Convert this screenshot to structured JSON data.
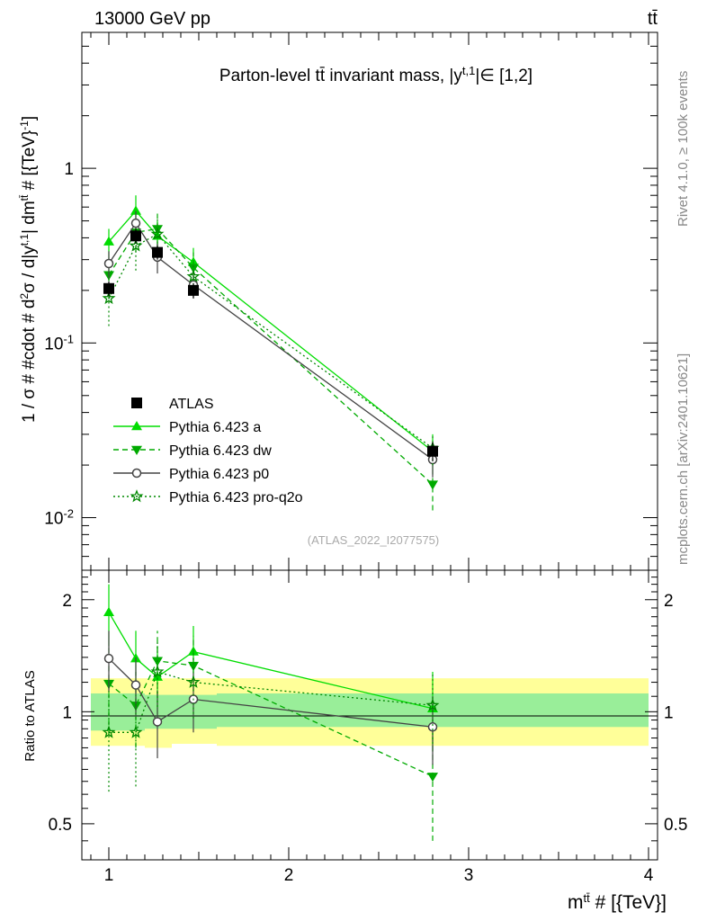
{
  "header": {
    "left": "13000 GeV pp",
    "right": "tt̄"
  },
  "side_labels": {
    "rivet": "Rivet 4.1.0, ≥ 100k events",
    "mcplots": "mcplots.cern.ch [arXiv:2401.10621]"
  },
  "chart_data": {
    "type": "line",
    "title": "Parton-level tt̄ invariant mass, |y^{t,1}| ∈ [1,2]",
    "title_parts": {
      "main": "Parton-level tt̄ invariant mass, |y",
      "sup": "t,1",
      "tail": "|∈ [1,2]"
    },
    "ylabel": "1 / σ # #cdot # d²σ / d|y^{t,1}| dm^{tt̄} # [{TeV}⁻¹]",
    "ylabel_parts": {
      "a": "1 / σ # #cdot # d",
      "b": "2",
      "c": "σ / d|y",
      "d": "t,1",
      "e": "| dm",
      "f": "tt̄",
      "g": " # [{TeV}",
      "h": "-1",
      "i": "]"
    },
    "xlabel": "m^{tt̄} # [{TeV}]",
    "xlabel_parts": {
      "a": "m",
      "b": "tt̄",
      "c": " # [{TeV}]"
    },
    "ratio_ylabel": "Ratio to ATLAS",
    "watermark": "(ATLAS_2022_I2077575)",
    "xlim": [
      0.85,
      4.05
    ],
    "ylim": [
      0.005,
      6
    ],
    "yscale": "log",
    "ratio_ylim": [
      0.4,
      2.4
    ],
    "x_ticks": [
      "1",
      "2",
      "3",
      "4"
    ],
    "y_ticks": [
      "10^{-2}",
      "10^{-1}",
      "1"
    ],
    "ratio_ticks": [
      "0.5",
      "1",
      "2"
    ],
    "x": [
      1.0,
      1.15,
      1.27,
      1.47,
      2.8
    ],
    "bin_edges": [
      0.9,
      1.08,
      1.2,
      1.35,
      1.6,
      4.0
    ],
    "band_inner": [
      [
        0.89,
        1.12
      ],
      [
        0.89,
        1.12
      ],
      [
        0.9,
        1.11
      ],
      [
        0.9,
        1.11
      ],
      [
        0.91,
        1.12
      ]
    ],
    "band_outer": [
      [
        0.81,
        1.23
      ],
      [
        0.81,
        1.23
      ],
      [
        0.8,
        1.23
      ],
      [
        0.82,
        1.23
      ],
      [
        0.81,
        1.23
      ]
    ],
    "series": [
      {
        "name": "ATLAS",
        "role": "data",
        "color": "#000000",
        "marker": "square",
        "dash": "",
        "values": [
          0.205,
          0.41,
          0.33,
          0.2,
          0.024
        ],
        "err": [
          [
            0.185,
            0.225
          ],
          [
            0.37,
            0.45
          ],
          [
            0.3,
            0.36
          ],
          [
            0.18,
            0.22
          ],
          [
            0.021,
            0.027
          ]
        ],
        "ratio": [
          1,
          1,
          1,
          1,
          1
        ],
        "ratio_err": [
          [
            1,
            1
          ],
          [
            1,
            1
          ],
          [
            1,
            1
          ],
          [
            1,
            1
          ],
          [
            1,
            1
          ]
        ]
      },
      {
        "name": "Pythia 6.423 a",
        "role": "mc",
        "color": "#00dd00",
        "marker": "triangle-up",
        "dash": "",
        "values": [
          0.38,
          0.57,
          0.41,
          0.29,
          0.024
        ],
        "err": [
          [
            0.31,
            0.45
          ],
          [
            0.47,
            0.7
          ],
          [
            0.33,
            0.5
          ],
          [
            0.24,
            0.35
          ],
          [
            0.019,
            0.03
          ]
        ],
        "ratio": [
          1.85,
          1.39,
          1.24,
          1.45,
          1.02
        ],
        "ratio_err": [
          [
            1.5,
            2.2
          ],
          [
            1.13,
            1.65
          ],
          [
            0.98,
            1.5
          ],
          [
            1.2,
            1.7
          ],
          [
            0.78,
            1.28
          ]
        ]
      },
      {
        "name": "Pythia 6.423 dw",
        "role": "mc",
        "color": "#00aa00",
        "marker": "triangle-down",
        "dash": "6,4",
        "values": [
          0.245,
          0.43,
          0.45,
          0.27,
          0.0155
        ],
        "err": [
          [
            0.18,
            0.31
          ],
          [
            0.33,
            0.53
          ],
          [
            0.36,
            0.55
          ],
          [
            0.22,
            0.33
          ],
          [
            0.011,
            0.02
          ]
        ],
        "ratio": [
          1.19,
          1.04,
          1.37,
          1.33,
          0.67
        ],
        "ratio_err": [
          [
            0.87,
            1.51
          ],
          [
            0.8,
            1.28
          ],
          [
            1.1,
            1.65
          ],
          [
            1.08,
            1.6
          ],
          [
            0.45,
            0.88
          ]
        ]
      },
      {
        "name": "Pythia 6.423 p0",
        "role": "mc",
        "color": "#444444",
        "marker": "circle",
        "dash": "",
        "values": [
          0.285,
          0.485,
          0.31,
          0.215,
          0.0215
        ],
        "err": [
          [
            0.235,
            0.335
          ],
          [
            0.4,
            0.57
          ],
          [
            0.25,
            0.37
          ],
          [
            0.18,
            0.25
          ],
          [
            0.017,
            0.026
          ]
        ],
        "ratio": [
          1.39,
          1.18,
          0.94,
          1.08,
          0.91
        ],
        "ratio_err": [
          [
            1.13,
            1.65
          ],
          [
            0.97,
            1.4
          ],
          [
            0.75,
            1.14
          ],
          [
            0.88,
            1.27
          ],
          [
            0.72,
            1.1
          ]
        ]
      },
      {
        "name": "Pythia 6.423 pro-q2o",
        "role": "mc",
        "color": "#008800",
        "marker": "star",
        "dash": "2,3",
        "values": [
          0.18,
          0.36,
          0.42,
          0.24,
          0.025
        ],
        "err": [
          [
            0.125,
            0.235
          ],
          [
            0.26,
            0.46
          ],
          [
            0.33,
            0.51
          ],
          [
            0.19,
            0.29
          ],
          [
            0.02,
            0.03
          ]
        ],
        "ratio": [
          0.88,
          0.88,
          1.28,
          1.2,
          1.04
        ],
        "ratio_err": [
          [
            0.61,
            1.15
          ],
          [
            0.63,
            1.12
          ],
          [
            1.03,
            1.55
          ],
          [
            0.96,
            1.45
          ],
          [
            0.82,
            1.26
          ]
        ]
      }
    ]
  }
}
